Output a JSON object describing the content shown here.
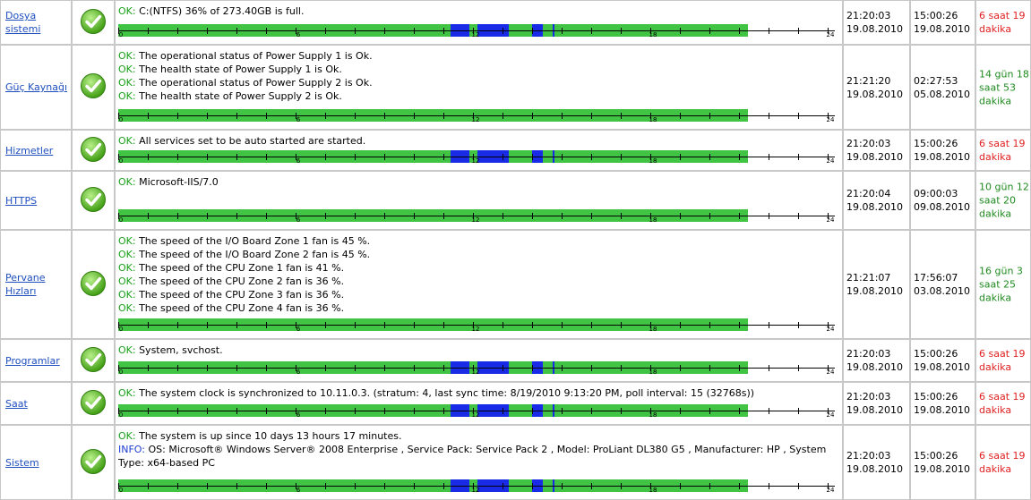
{
  "rows": [
    {
      "name": "Dosya sistemi",
      "messages": [
        {
          "status": "OK:",
          "text": "C:(NTFS) 36% of 273.40GB is full."
        }
      ],
      "time1": [
        "21:20:03",
        "19.08.2010"
      ],
      "time2": [
        "15:00:26",
        "19.08.2010"
      ],
      "duration": "6 saat 19 dakika",
      "duration_color": "red",
      "timeline_blocks": [
        [
          11.25,
          11.9
        ],
        [
          12.15,
          13.2
        ],
        [
          14.0,
          14.35
        ]
      ],
      "timeline_marker": 14.7
    },
    {
      "name": "Güç Kaynağı",
      "messages": [
        {
          "status": "OK:",
          "text": "The operational status of Power Supply 1 is Ok."
        },
        {
          "status": "OK:",
          "text": "The health state of Power Supply 1 is Ok."
        },
        {
          "status": "OK:",
          "text": "The operational status of Power Supply 2 is Ok."
        },
        {
          "status": "OK:",
          "text": "The health state of Power Supply 2 is Ok."
        }
      ],
      "time1": [
        "21:21:20",
        "19.08.2010"
      ],
      "time2": [
        "02:27:53",
        "05.08.2010"
      ],
      "duration": "14 gün 18 saat 53 dakika",
      "duration_color": "green",
      "timeline_blocks": [],
      "timeline_marker": null
    },
    {
      "name": "Hizmetler",
      "messages": [
        {
          "status": "OK:",
          "text": "All services set to be auto started are started."
        }
      ],
      "time1": [
        "21:20:03",
        "19.08.2010"
      ],
      "time2": [
        "15:00:26",
        "19.08.2010"
      ],
      "duration": "6 saat 19 dakika",
      "duration_color": "red",
      "timeline_blocks": [
        [
          11.25,
          11.9
        ],
        [
          12.15,
          13.2
        ],
        [
          14.0,
          14.35
        ]
      ],
      "timeline_marker": 14.7
    },
    {
      "name": "HTTPS",
      "messages": [
        {
          "status": "OK:",
          "text": "Microsoft-IIS/7.0"
        }
      ],
      "time1": [
        "21:20:04",
        "19.08.2010"
      ],
      "time2": [
        "09:00:03",
        "09.08.2010"
      ],
      "duration": "10 gün 12 saat 20 dakika",
      "duration_color": "green",
      "timeline_blocks": [],
      "timeline_marker": null
    },
    {
      "name": "Pervane Hızları",
      "messages": [
        {
          "status": "OK:",
          "text": "The speed of the I/O Board Zone 1 fan is 45 %."
        },
        {
          "status": "OK:",
          "text": "The speed of the I/O Board Zone 2 fan is 45 %."
        },
        {
          "status": "OK:",
          "text": "The speed of the CPU Zone 1 fan is 41 %."
        },
        {
          "status": "OK:",
          "text": "The speed of the CPU Zone 2 fan is 36 %."
        },
        {
          "status": "OK:",
          "text": "The speed of the CPU Zone 3 fan is 36 %."
        },
        {
          "status": "OK:",
          "text": "The speed of the CPU Zone 4 fan is 36 %."
        }
      ],
      "time1": [
        "21:21:07",
        "19.08.2010"
      ],
      "time2": [
        "17:56:07",
        "03.08.2010"
      ],
      "duration": "16 gün 3 saat 25 dakika",
      "duration_color": "green",
      "timeline_blocks": [],
      "timeline_marker": null
    },
    {
      "name": "Programlar",
      "messages": [
        {
          "status": "OK:",
          "text": "System, svchost."
        }
      ],
      "time1": [
        "21:20:03",
        "19.08.2010"
      ],
      "time2": [
        "15:00:26",
        "19.08.2010"
      ],
      "duration": "6 saat 19 dakika",
      "duration_color": "red",
      "timeline_blocks": [
        [
          11.25,
          11.9
        ],
        [
          12.15,
          13.2
        ],
        [
          14.0,
          14.35
        ]
      ],
      "timeline_marker": 14.7
    },
    {
      "name": "Saat",
      "messages": [
        {
          "status": "OK:",
          "text": "The system clock is synchronized to 10.11.0.3. (stratum: 4, last sync time: 8/19/2010 9:13:20 PM, poll interval: 15 (32768s))"
        }
      ],
      "time1": [
        "21:20:03",
        "19.08.2010"
      ],
      "time2": [
        "15:00:26",
        "19.08.2010"
      ],
      "duration": "6 saat 19 dakika",
      "duration_color": "red",
      "timeline_blocks": [
        [
          11.25,
          11.9
        ],
        [
          12.15,
          13.2
        ],
        [
          14.0,
          14.35
        ]
      ],
      "timeline_marker": 14.7
    },
    {
      "name": "Sistem",
      "messages": [
        {
          "status": "OK:",
          "text": "The system is up since 10 days 13 hours 17 minutes."
        },
        {
          "status": "INFO:",
          "text": "OS: Microsoft® Windows Server® 2008 Enterprise , Service Pack: Service Pack 2 , Model: ProLiant DL380 G5 , Manufacturer: HP , System Type: x64-based PC"
        }
      ],
      "time1": [
        "21:20:03",
        "19.08.2010"
      ],
      "time2": [
        "15:00:26",
        "19.08.2010"
      ],
      "duration": "6 saat 19 dakika",
      "duration_color": "red",
      "timeline_blocks": [
        [
          11.25,
          11.9
        ],
        [
          12.15,
          13.2
        ],
        [
          14.0,
          14.35
        ]
      ],
      "timeline_marker": 14.7
    }
  ],
  "timeline": {
    "range_hours": [
      0,
      24
    ],
    "labels": [
      "0",
      "6",
      "12",
      "18",
      "24"
    ],
    "ok_until_hour": 21.3,
    "colors": {
      "ok": "#41c343",
      "down": "#1a2be8"
    }
  }
}
